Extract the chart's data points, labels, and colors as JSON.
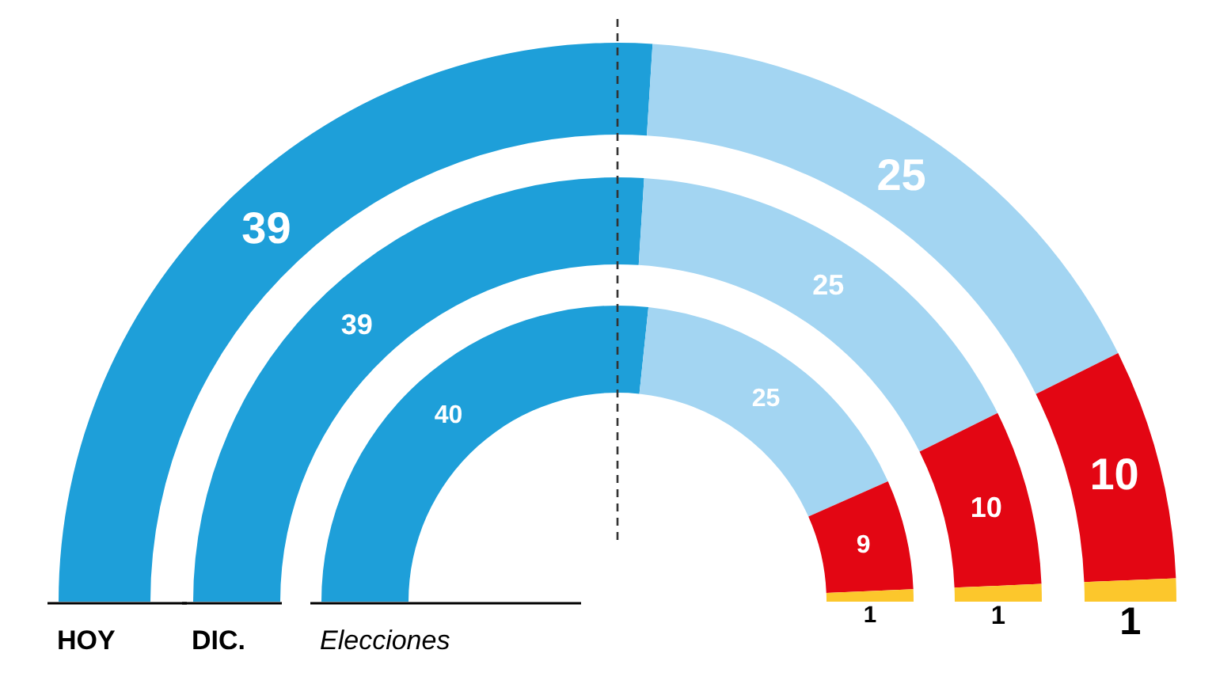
{
  "chart_data": {
    "type": "donut",
    "categories": [
      null,
      null,
      null,
      null
    ],
    "colors": [
      "#1e9fd9",
      "#a3d5f2",
      "#e30613",
      "#fcc72c"
    ],
    "data_labels": true,
    "series": [
      {
        "name": "HOY",
        "values": [
          39,
          25,
          10,
          1
        ]
      },
      {
        "name": "DIC.",
        "values": [
          39,
          25,
          10,
          1
        ]
      },
      {
        "name": "Elecciones",
        "values": [
          40,
          25,
          9,
          1
        ]
      }
    ]
  }
}
